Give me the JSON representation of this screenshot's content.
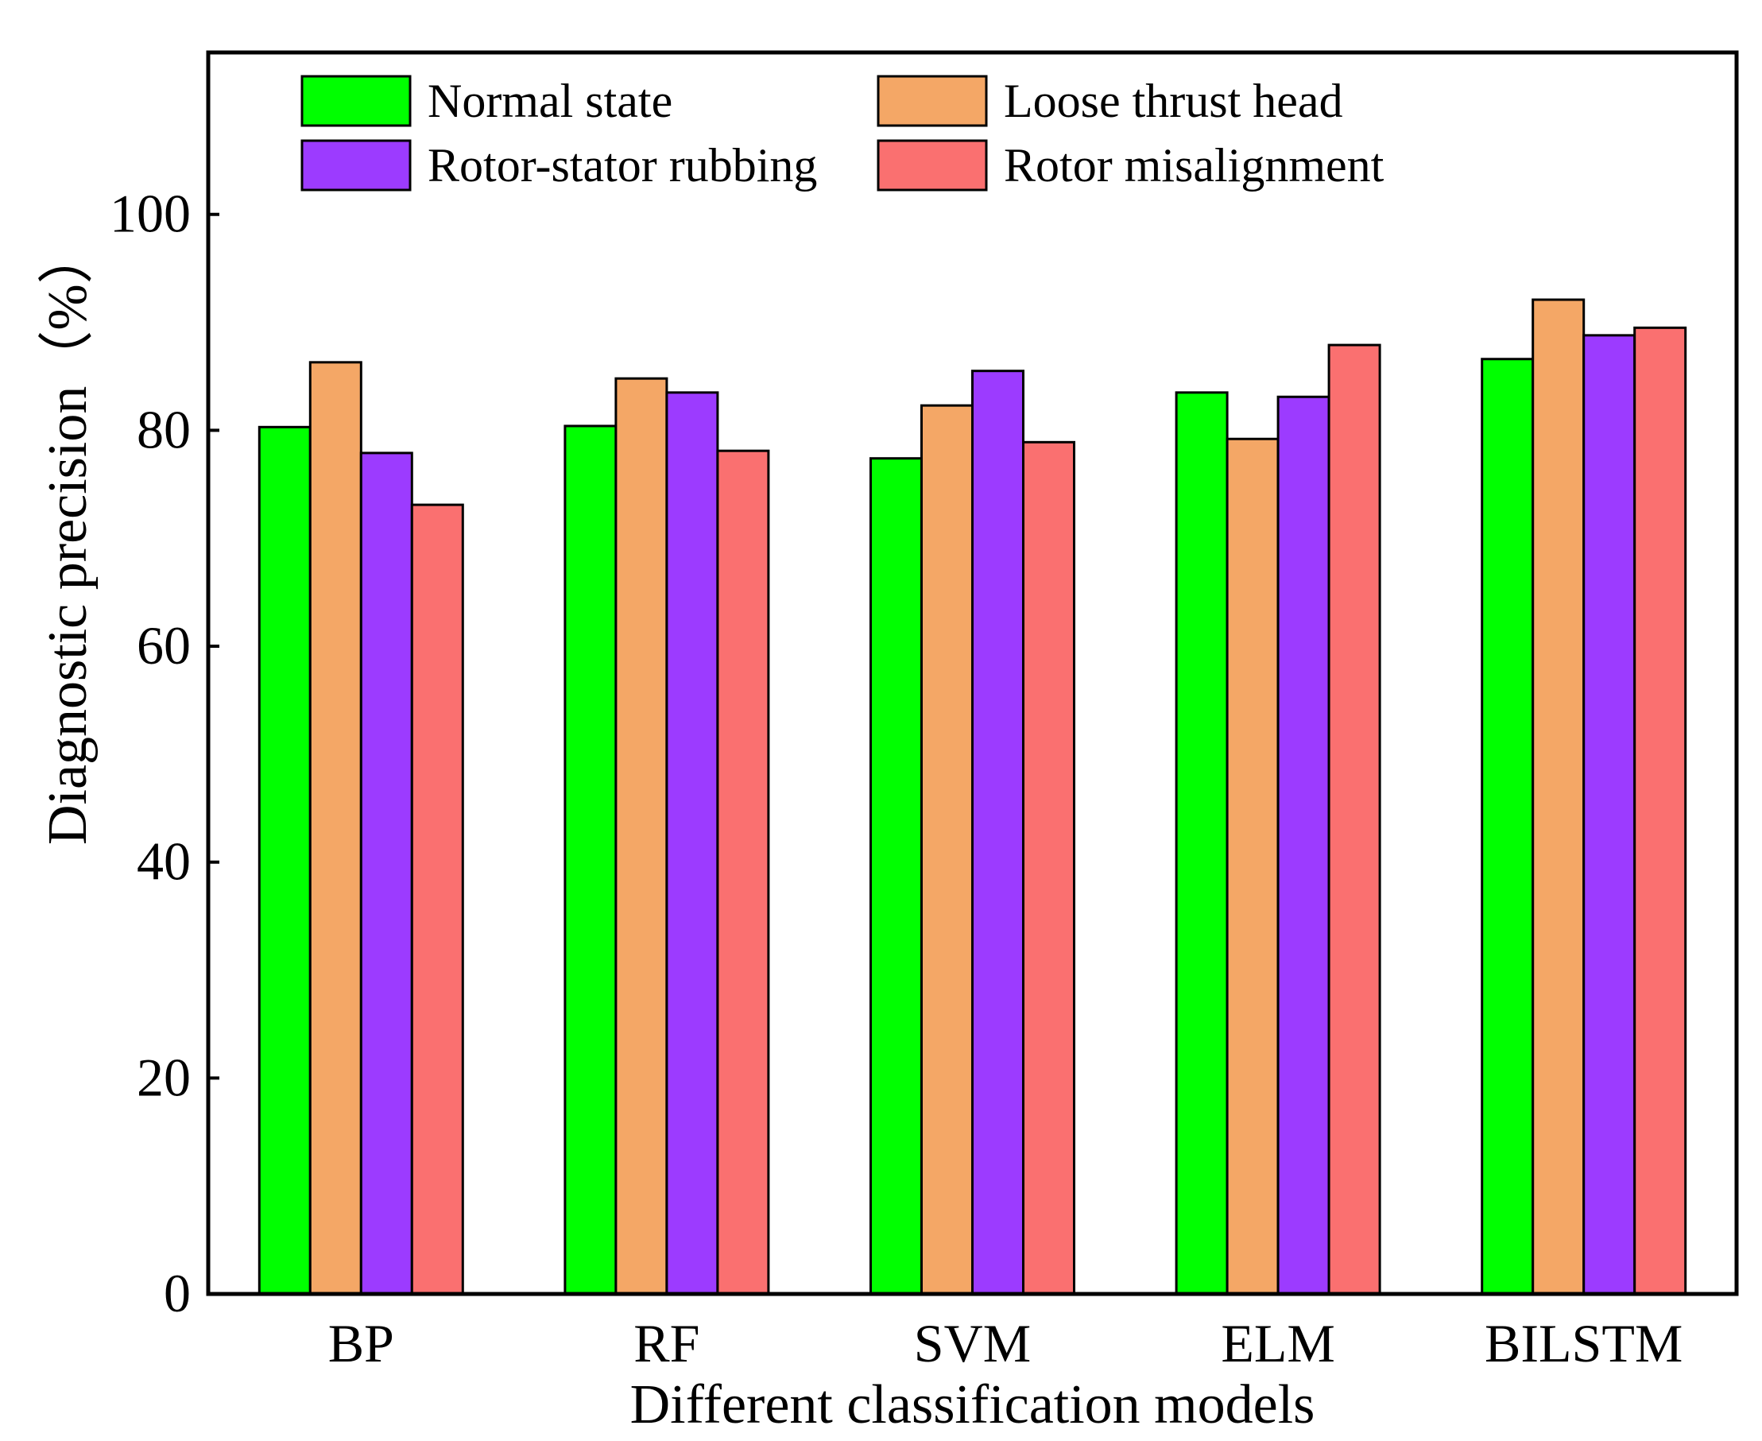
{
  "chart_data": {
    "type": "bar",
    "title": "",
    "xlabel": "Different classification models",
    "ylabel": "Diagnostic precision（%）",
    "ylim": [
      0,
      115
    ],
    "yticks": [
      0,
      20,
      40,
      60,
      80,
      100
    ],
    "grid": false,
    "legend_position": "top-left",
    "categories": [
      "BP",
      "RF",
      "SVM",
      "ELM",
      "BILSTM"
    ],
    "series": [
      {
        "name": "Normal state",
        "color": "#00ff00",
        "values": [
          80.3,
          80.4,
          77.4,
          83.5,
          86.6
        ]
      },
      {
        "name": "Loose thrust head",
        "color": "#f4a766",
        "values": [
          86.3,
          84.8,
          82.3,
          79.2,
          92.1
        ]
      },
      {
        "name": "Rotor-stator rubbing",
        "color": "#9c3bff",
        "values": [
          77.9,
          83.5,
          85.5,
          83.1,
          88.8
        ]
      },
      {
        "name": "Rotor misalignment",
        "color": "#fa7070",
        "values": [
          73.1,
          78.1,
          78.9,
          87.9,
          89.5
        ]
      }
    ]
  }
}
